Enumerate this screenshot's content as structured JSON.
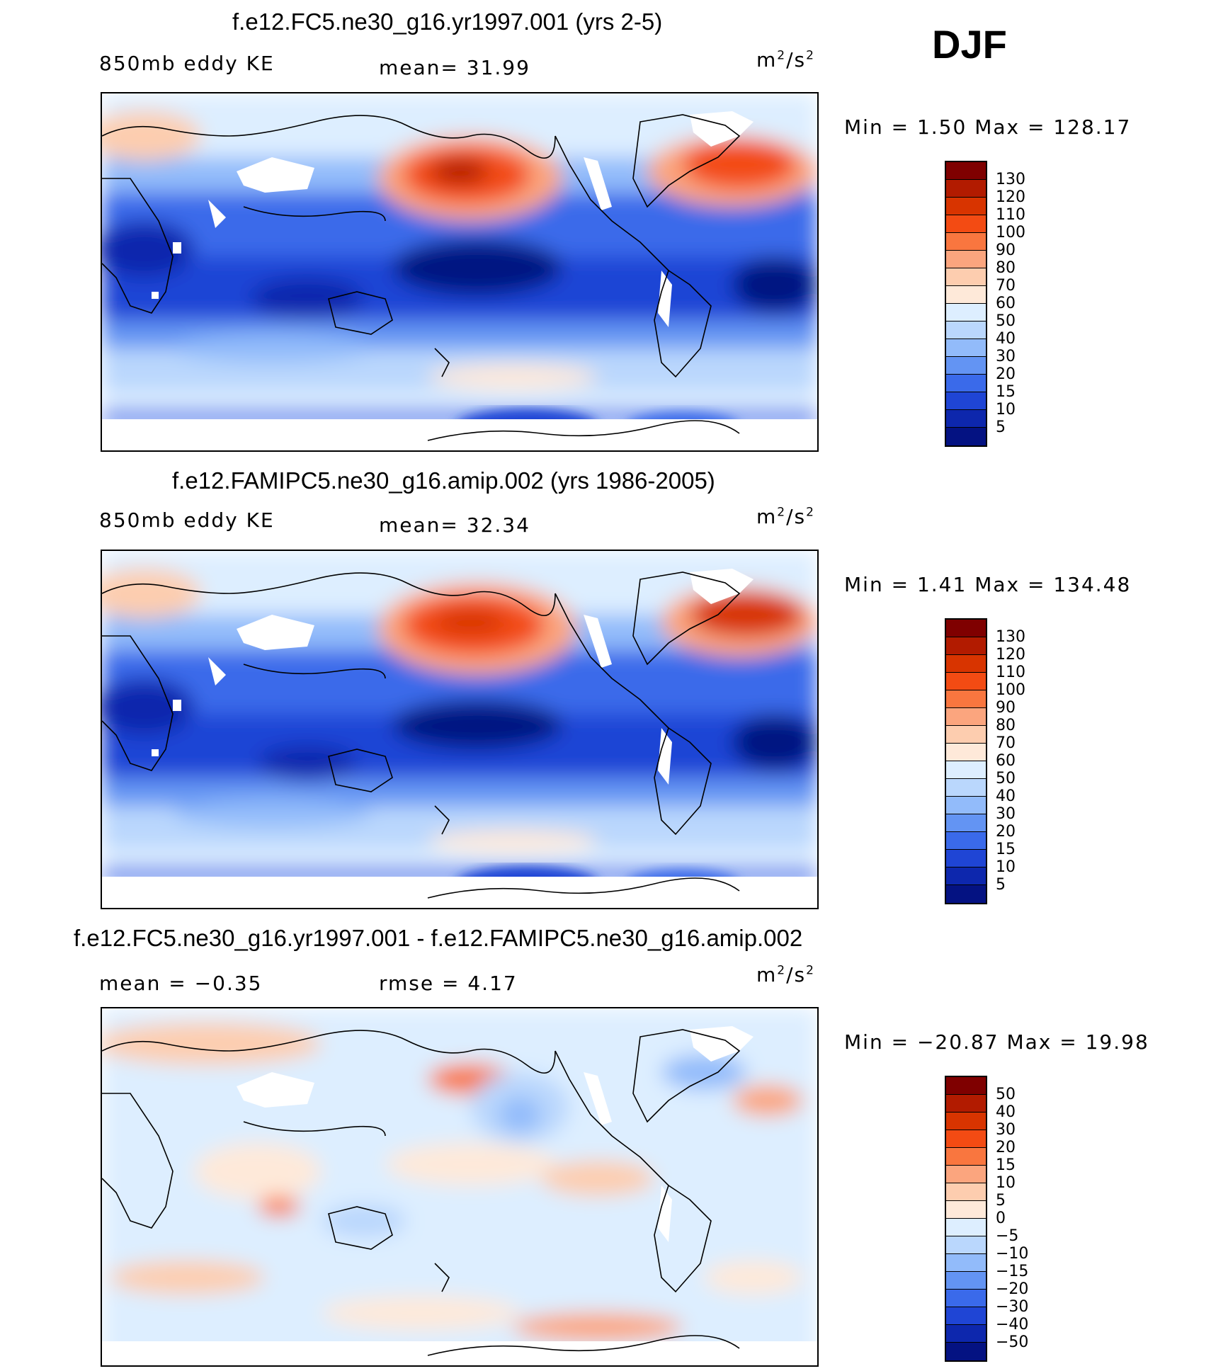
{
  "season": "DJF",
  "panels": [
    {
      "title": "f.e12.FC5.ne30_g16.yr1997.001 (yrs 2-5)",
      "left_label": "850mb  eddy  KE",
      "mid_label": "mean=   31.99",
      "units": "m²/s²",
      "minmax": "Min  =     1.50  Max  =  128.17",
      "colorbar_labels": [
        "130",
        "120",
        "110",
        "100",
        "90",
        "80",
        "70",
        "60",
        "50",
        "40",
        "30",
        "20",
        "15",
        "10",
        "5"
      ],
      "colorbar_colors": [
        "#7f0000",
        "#b21b00",
        "#d83400",
        "#f34b13",
        "#f9763f",
        "#fba57e",
        "#fdcdaf",
        "#fee9d9",
        "#ddeeff",
        "#bad7fd",
        "#92bbfa",
        "#6394f3",
        "#3a6aea",
        "#1f45d5",
        "#0d27ad",
        "#041282"
      ]
    },
    {
      "title": "f.e12.FAMIPC5.ne30_g16.amip.002 (yrs 1986-2005)",
      "left_label": "850mb  eddy  KE",
      "mid_label": "mean=   32.34",
      "units": "m²/s²",
      "minmax": "Min  =     1.41  Max  =  134.48",
      "colorbar_labels": [
        "130",
        "120",
        "110",
        "100",
        "90",
        "80",
        "70",
        "60",
        "50",
        "40",
        "30",
        "20",
        "15",
        "10",
        "5"
      ],
      "colorbar_colors": [
        "#7f0000",
        "#b21b00",
        "#d83400",
        "#f34b13",
        "#f9763f",
        "#fba57e",
        "#fdcdaf",
        "#fee9d9",
        "#ddeeff",
        "#bad7fd",
        "#92bbfa",
        "#6394f3",
        "#3a6aea",
        "#1f45d5",
        "#0d27ad",
        "#041282"
      ]
    },
    {
      "title": "f.e12.FC5.ne30_g16.yr1997.001 - f.e12.FAMIPC5.ne30_g16.amip.002",
      "left_label": "mean  =    −0.35",
      "mid_label": "rmse  =     4.17",
      "units": "m²/s²",
      "minmax": "Min  = −20.87  Max  =    19.98",
      "colorbar_labels": [
        "50",
        "40",
        "30",
        "20",
        "15",
        "10",
        "5",
        "0",
        "−5",
        "−10",
        "−15",
        "−20",
        "−30",
        "−40",
        "−50"
      ],
      "colorbar_colors": [
        "#7f0000",
        "#b21b00",
        "#d83400",
        "#f34b13",
        "#f9763f",
        "#fba57e",
        "#fdcdaf",
        "#fee9d9",
        "#ddeeff",
        "#bad7fd",
        "#92bbfa",
        "#6394f3",
        "#3a6aea",
        "#1f45d5",
        "#0d27ad",
        "#041282"
      ]
    }
  ]
}
